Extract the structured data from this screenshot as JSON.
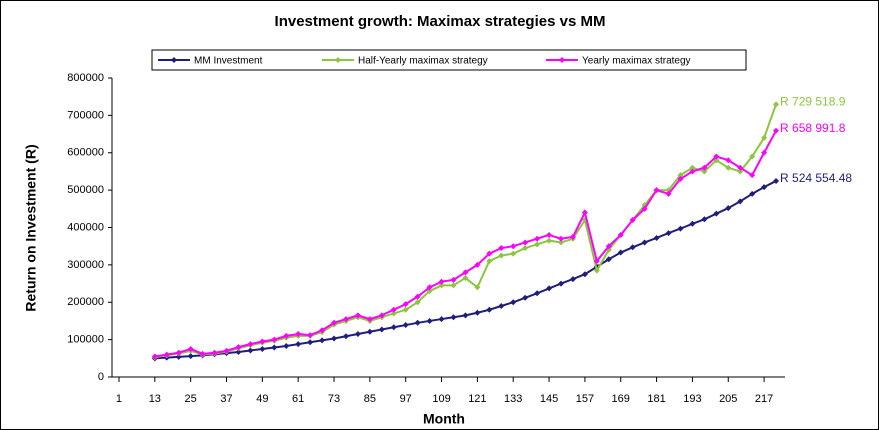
{
  "chart_data": {
    "type": "line",
    "title": "Investment growth: Maximax strategies vs MM",
    "x_label": "Month",
    "y_label": "Return on Investment (R)",
    "x": [
      13,
      17,
      21,
      25,
      29,
      33,
      37,
      41,
      45,
      49,
      53,
      57,
      61,
      65,
      69,
      73,
      77,
      81,
      85,
      89,
      93,
      97,
      101,
      105,
      109,
      113,
      117,
      121,
      125,
      129,
      133,
      137,
      141,
      145,
      149,
      153,
      157,
      161,
      165,
      169,
      173,
      177,
      181,
      185,
      189,
      193,
      197,
      201,
      205,
      209,
      213,
      217,
      221
    ],
    "series": [
      {
        "name": "MM Investment",
        "color": "#1f1f7a",
        "end_label": "R 524 554.48",
        "values": [
          50000,
          52000,
          54000,
          56000,
          58000,
          61000,
          64000,
          67000,
          71000,
          75000,
          79000,
          83000,
          88000,
          93000,
          98000,
          103000,
          109000,
          115000,
          121000,
          127000,
          133000,
          139000,
          145000,
          150000,
          155000,
          160000,
          165000,
          172000,
          180000,
          190000,
          200000,
          212000,
          224000,
          237000,
          250000,
          262000,
          275000,
          295000,
          315000,
          333000,
          347000,
          360000,
          372000,
          385000,
          397000,
          410000,
          422000,
          437000,
          452000,
          470000,
          490000,
          508000,
          524554.48
        ]
      },
      {
        "name": "Half-Yearly maximax strategy",
        "color": "#8cc63f",
        "end_label": "R 729 518.9",
        "values": [
          53000,
          58000,
          63000,
          70000,
          60000,
          63000,
          68000,
          77000,
          85000,
          92000,
          97000,
          105000,
          110000,
          110000,
          120000,
          140000,
          150000,
          160000,
          150000,
          160000,
          170000,
          180000,
          200000,
          230000,
          245000,
          245000,
          265000,
          240000,
          310000,
          325000,
          330000,
          345000,
          355000,
          365000,
          360000,
          370000,
          420000,
          285000,
          340000,
          380000,
          420000,
          460000,
          500000,
          500000,
          540000,
          560000,
          550000,
          580000,
          560000,
          550000,
          590000,
          640000,
          729518.9
        ]
      },
      {
        "name": "Yearly maximax strategy",
        "color": "#ff00ff",
        "end_label": "R 658 991.8",
        "values": [
          55000,
          60000,
          65000,
          75000,
          62000,
          65000,
          70000,
          80000,
          88000,
          95000,
          100000,
          110000,
          115000,
          112000,
          125000,
          145000,
          155000,
          165000,
          155000,
          165000,
          180000,
          195000,
          215000,
          240000,
          255000,
          260000,
          280000,
          300000,
          330000,
          345000,
          350000,
          360000,
          370000,
          380000,
          370000,
          375000,
          440000,
          310000,
          350000,
          380000,
          420000,
          450000,
          500000,
          490000,
          530000,
          550000,
          560000,
          590000,
          580000,
          560000,
          540000,
          600000,
          658991.8
        ]
      }
    ],
    "xlim": [
      0,
      224
    ],
    "xticks": [
      1,
      13,
      25,
      37,
      49,
      61,
      73,
      85,
      97,
      109,
      121,
      133,
      145,
      157,
      169,
      181,
      193,
      205,
      217
    ],
    "ylim": [
      0,
      800000
    ],
    "yticks": [
      0,
      100000,
      200000,
      300000,
      400000,
      500000,
      600000,
      700000,
      800000
    ],
    "legend": "top"
  }
}
